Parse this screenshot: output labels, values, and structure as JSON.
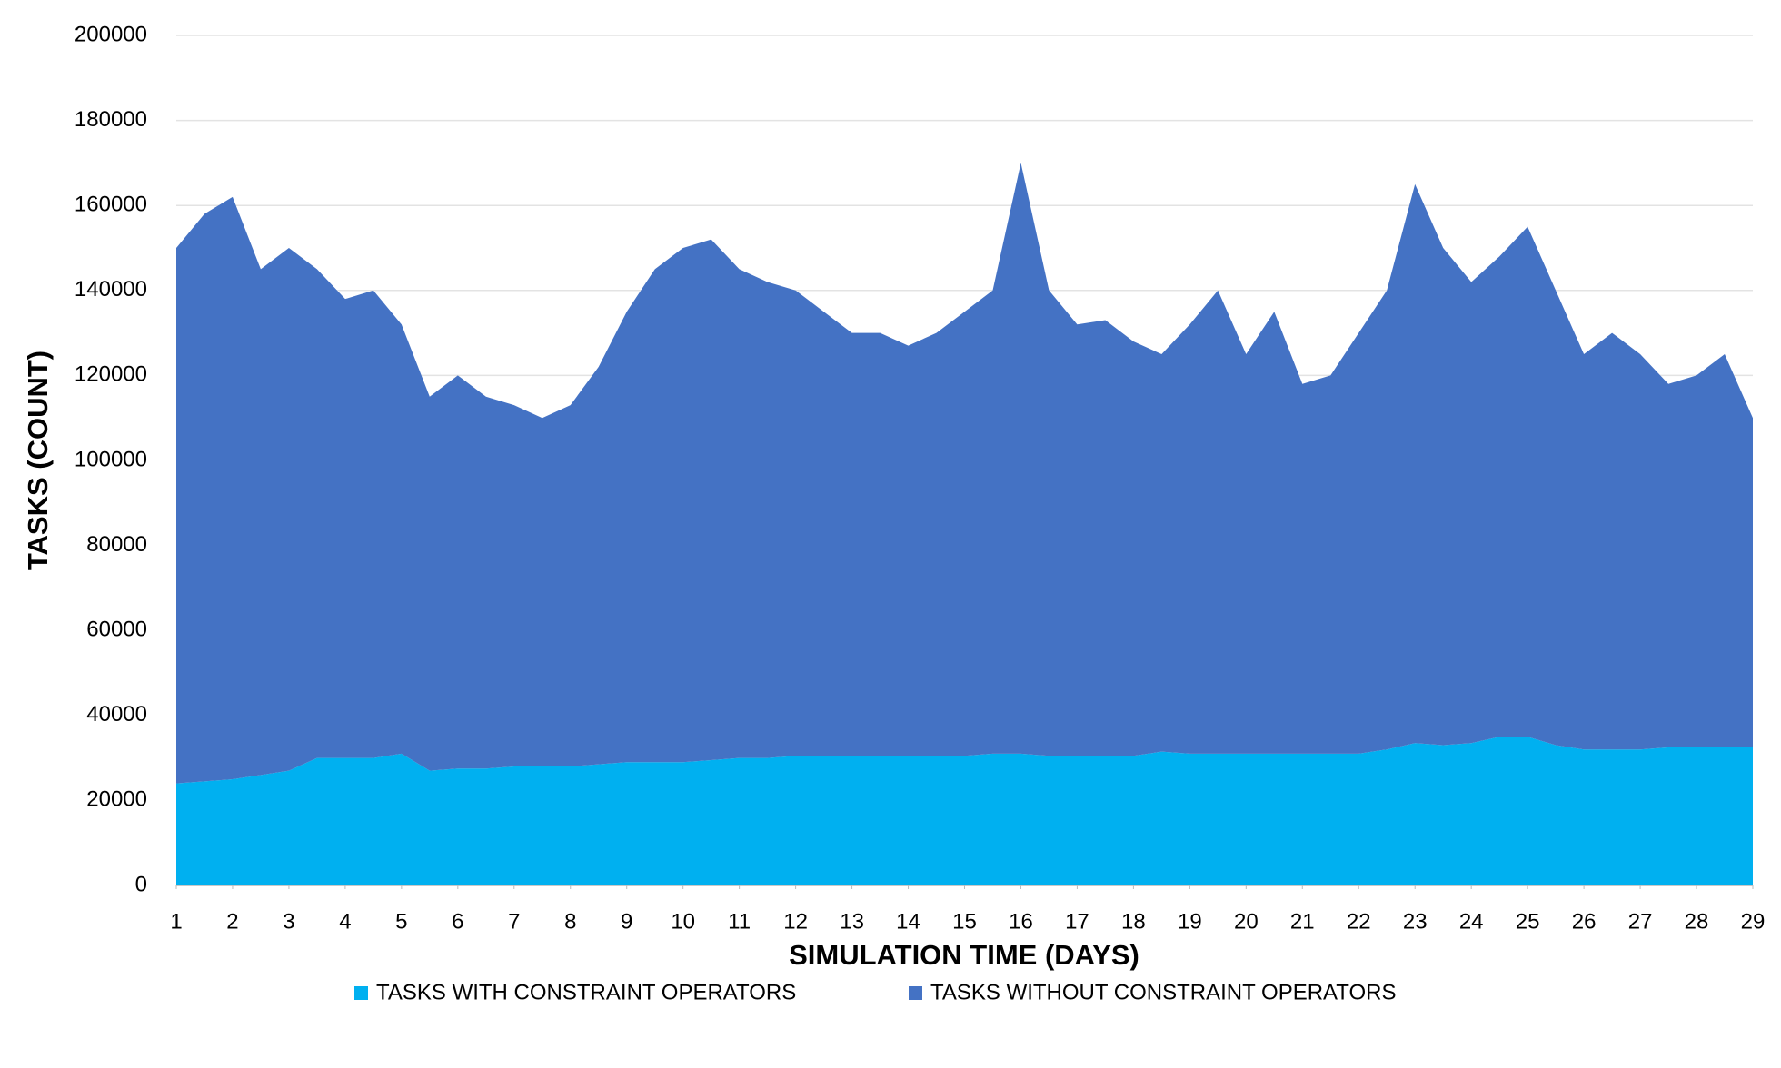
{
  "chart_data": {
    "type": "stacked_area",
    "xlabel": "SIMULATION TIME (DAYS)",
    "ylabel": "TASKS (COUNT)",
    "x": [
      1,
      1.5,
      2,
      2.5,
      3,
      3.5,
      4,
      4.5,
      5,
      5.5,
      6,
      6.5,
      7,
      7.5,
      8,
      8.5,
      9,
      9.5,
      10,
      10.5,
      11,
      11.5,
      12,
      12.5,
      13,
      13.5,
      14,
      14.5,
      15,
      15.5,
      16,
      16.5,
      17,
      17.5,
      18,
      18.5,
      19,
      19.5,
      20,
      20.5,
      21,
      21.5,
      22,
      22.5,
      23,
      23.5,
      24,
      24.5,
      25,
      25.5,
      26,
      26.5,
      27,
      27.5,
      28,
      28.5,
      29
    ],
    "series": [
      {
        "name": "TASKS WITH CONSTRAINT OPERATORS",
        "color": "#00b0f0",
        "values": [
          24000,
          24500,
          25000,
          26000,
          27000,
          30000,
          30000,
          30000,
          31000,
          27000,
          27500,
          27500,
          28000,
          28000,
          28000,
          28500,
          29000,
          29000,
          29000,
          29500,
          30000,
          30000,
          30500,
          30500,
          30500,
          30500,
          30500,
          30500,
          30500,
          31000,
          31000,
          30500,
          30500,
          30500,
          30500,
          31500,
          31000,
          31000,
          31000,
          31000,
          31000,
          31000,
          31000,
          32000,
          33500,
          33000,
          33500,
          35000,
          35000,
          33000,
          32000,
          32000,
          32000,
          32500,
          32500,
          32500,
          32500
        ]
      },
      {
        "name": "TASKS WITHOUT CONSTRAINT OPERATORS",
        "color": "#4472c4",
        "values": [
          126000,
          133500,
          137000,
          119000,
          123000,
          115000,
          108000,
          110000,
          101000,
          88000,
          92500,
          87500,
          85000,
          82000,
          85000,
          93500,
          106000,
          116000,
          121000,
          122500,
          115000,
          112000,
          109500,
          104500,
          99500,
          99500,
          96500,
          99500,
          104500,
          109000,
          139000,
          109500,
          101500,
          102500,
          97500,
          93500,
          101000,
          109000,
          94000,
          104000,
          87000,
          89000,
          99000,
          108000,
          131500,
          117000,
          108500,
          113000,
          120000,
          107000,
          93000,
          98000,
          93000,
          85500,
          87500,
          92500,
          77500
        ]
      }
    ],
    "xlim": [
      1,
      29
    ],
    "xticks": [
      1,
      2,
      3,
      4,
      5,
      6,
      7,
      8,
      9,
      10,
      11,
      12,
      13,
      14,
      15,
      16,
      17,
      18,
      19,
      20,
      21,
      22,
      23,
      24,
      25,
      26,
      27,
      28,
      29
    ],
    "ylim": [
      0,
      200000
    ],
    "yticks": [
      0,
      20000,
      40000,
      60000,
      80000,
      100000,
      120000,
      140000,
      160000,
      180000,
      200000
    ],
    "grid": true,
    "legend": "bottom"
  }
}
